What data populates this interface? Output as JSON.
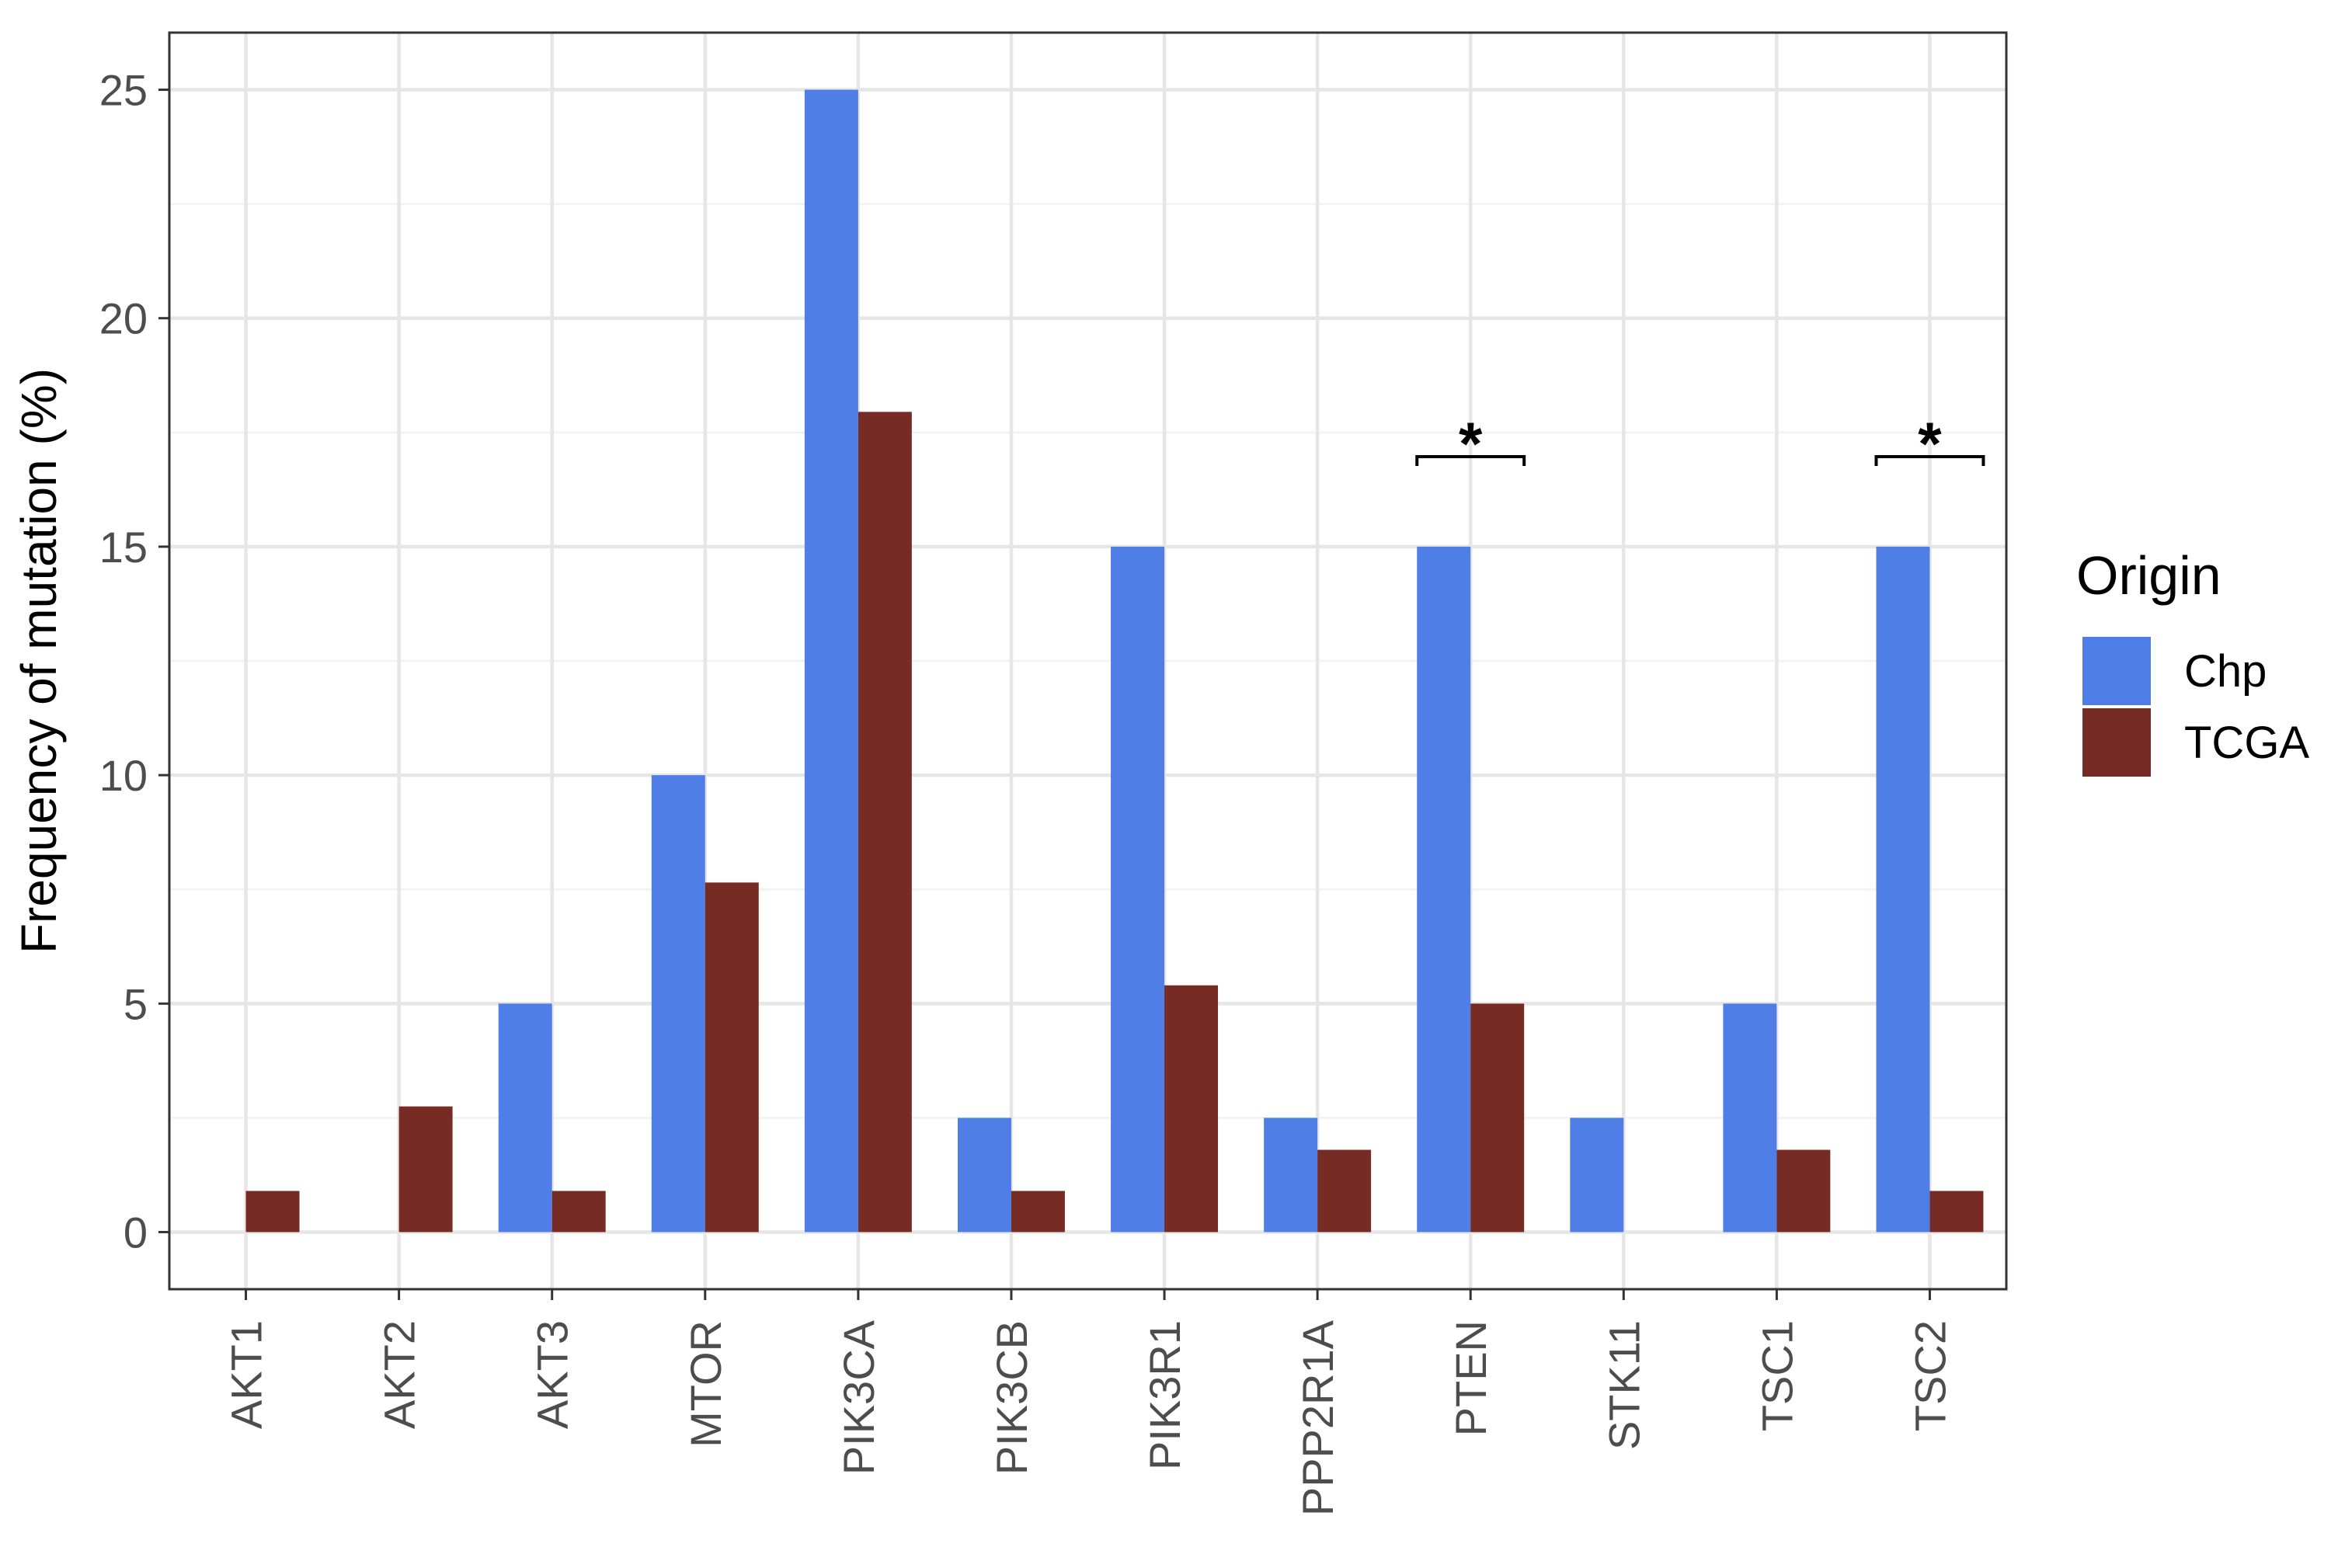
{
  "chart_data": {
    "type": "bar",
    "xlabel": "",
    "ylabel": "Frequency of mutation (%)",
    "ylim": [
      -1.25,
      26.25
    ],
    "yticks": [
      0,
      5,
      10,
      15,
      20,
      25
    ],
    "categories": [
      "AKT1",
      "AKT2",
      "AKT3",
      "MTOR",
      "PIK3CA",
      "PIK3CB",
      "PIK3R1",
      "PPP2R1A",
      "PTEN",
      "STK11",
      "TSC1",
      "TSC2"
    ],
    "series": [
      {
        "name": "Chp",
        "color": "#4f7fe6",
        "values": [
          0,
          0,
          5,
          10,
          25,
          2.5,
          15,
          2.5,
          15,
          2.5,
          5,
          15
        ]
      },
      {
        "name": "TCGA",
        "color": "#772b25",
        "values": [
          0.9,
          2.75,
          0.9,
          7.65,
          17.95,
          0.9,
          5.4,
          1.8,
          5.0,
          0,
          1.8,
          0.9
        ]
      }
    ],
    "legend": {
      "title": "Origin",
      "position": "right"
    },
    "annotations": [
      {
        "category": "PTEN",
        "label": "*"
      },
      {
        "category": "TSC2",
        "label": "*"
      }
    ],
    "grid": true,
    "colors": {
      "panel_border": "#333333",
      "grid_major": "#e6e6e6",
      "grid_minor": "#f2f2f2"
    }
  }
}
